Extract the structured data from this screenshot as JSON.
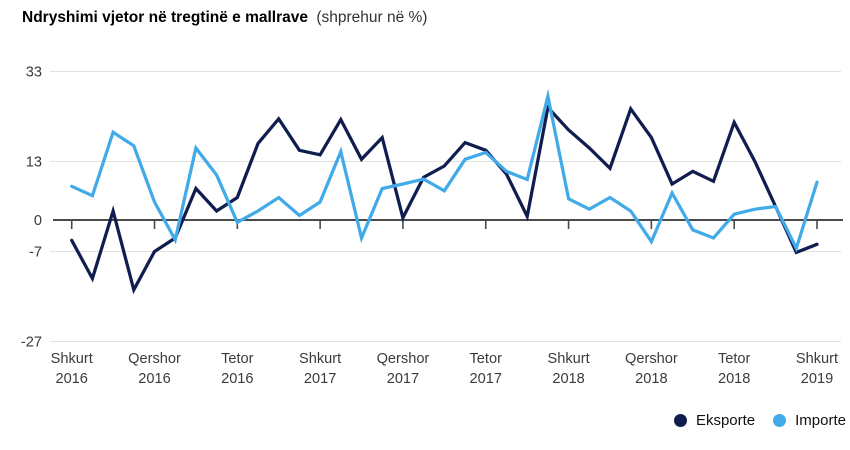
{
  "header": {
    "title": "Ndryshimi vjetor në tregtinë e mallrave",
    "subtitle": "(shprehur në %)"
  },
  "legend": {
    "position": "bottom-right",
    "items": [
      {
        "label": "Eksporte",
        "color": "#101d4f"
      },
      {
        "label": "Importe",
        "color": "#41aae8"
      }
    ]
  },
  "chart_data": {
    "type": "line",
    "title": "Ndryshimi vjetor në tregtinë e mallrave",
    "subtitle": "(shprehur në %)",
    "unit": "percent",
    "grid": "horizontal",
    "legend_position": "bottom-right",
    "ylim": [
      -27,
      33
    ],
    "yticks": [
      33,
      13,
      0,
      -7,
      -27
    ],
    "gridline_values": [
      33,
      13,
      -7,
      -27
    ],
    "x": [
      "2016-02",
      "2016-03",
      "2016-04",
      "2016-05",
      "2016-06",
      "2016-07",
      "2016-08",
      "2016-09",
      "2016-10",
      "2016-11",
      "2016-12",
      "2017-01",
      "2017-02",
      "2017-03",
      "2017-04",
      "2017-05",
      "2017-06",
      "2017-07",
      "2017-08",
      "2017-09",
      "2017-10",
      "2017-11",
      "2017-12",
      "2018-01",
      "2018-02",
      "2018-03",
      "2018-04",
      "2018-05",
      "2018-06",
      "2018-07",
      "2018-08",
      "2018-09",
      "2018-10",
      "2018-11",
      "2018-12",
      "2019-01",
      "2019-02"
    ],
    "x_tick_labels": [
      {
        "month": "Shkurt",
        "year": "2016",
        "index": 0
      },
      {
        "month": "Qershor",
        "year": "2016",
        "index": 4
      },
      {
        "month": "Tetor",
        "year": "2016",
        "index": 8
      },
      {
        "month": "Shkurt",
        "year": "2017",
        "index": 12
      },
      {
        "month": "Qershor",
        "year": "2017",
        "index": 16
      },
      {
        "month": "Tetor",
        "year": "2017",
        "index": 20
      },
      {
        "month": "Shkurt",
        "year": "2018",
        "index": 24
      },
      {
        "month": "Qershor",
        "year": "2018",
        "index": 28
      },
      {
        "month": "Tetor",
        "year": "2018",
        "index": 32
      },
      {
        "month": "Shkurt",
        "year": "2019",
        "index": 36
      }
    ],
    "series": [
      {
        "name": "Eksporte",
        "color": "#101d4f",
        "values": [
          -4.5,
          -13,
          2,
          -15.5,
          -7,
          -4,
          7,
          2,
          5,
          17,
          22.5,
          15.5,
          14.5,
          22.3,
          13.5,
          18.3,
          0.5,
          9.5,
          12,
          17.2,
          15.5,
          10.2,
          0.8,
          25,
          20,
          16,
          11.5,
          24.7,
          18.3,
          8,
          10.8,
          8.6,
          21.7,
          13,
          3,
          -7.2,
          -5.4
        ]
      },
      {
        "name": "Importe",
        "color": "#41aae8",
        "values": [
          7.5,
          5.4,
          19.5,
          16.5,
          4,
          -4.4,
          16,
          10,
          -0.5,
          2,
          5,
          1,
          4,
          15.2,
          -4,
          7,
          8,
          9.1,
          6.5,
          13.5,
          15,
          10.8,
          9,
          27.5,
          4.7,
          2.4,
          5,
          2,
          -4.8,
          6,
          -2.2,
          -4,
          1.3,
          2.4,
          3,
          -6.3,
          8.4
        ]
      }
    ],
    "style": {
      "axis_color": "#4a4a4a",
      "grid_color": "#e1e1e1",
      "tick_label_color": "#3b3b3b"
    }
  }
}
